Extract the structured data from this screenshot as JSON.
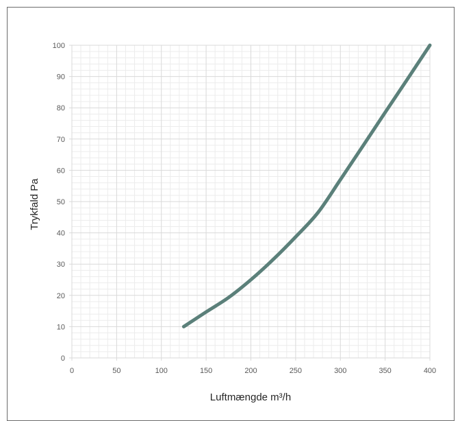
{
  "chart_data": {
    "type": "line",
    "title": "",
    "xlabel": "Luftmængde m³/h",
    "ylabel": "Trykfald Pa",
    "xlim": [
      0,
      400
    ],
    "ylim": [
      0,
      100
    ],
    "x_ticks": [
      0,
      50,
      100,
      150,
      200,
      250,
      300,
      350,
      400
    ],
    "y_ticks": [
      0,
      10,
      20,
      30,
      40,
      50,
      60,
      70,
      80,
      90,
      100
    ],
    "grid": "major and minor",
    "series": [
      {
        "color": "#5b807a",
        "x": [
          125,
          150,
          175,
          200,
          225,
          250,
          275,
          300,
          325,
          350,
          375,
          400
        ],
        "y": [
          10,
          14.7,
          19.3,
          25,
          31.5,
          38.7,
          46.5,
          57,
          67.7,
          78.5,
          89.2,
          100
        ]
      }
    ]
  }
}
